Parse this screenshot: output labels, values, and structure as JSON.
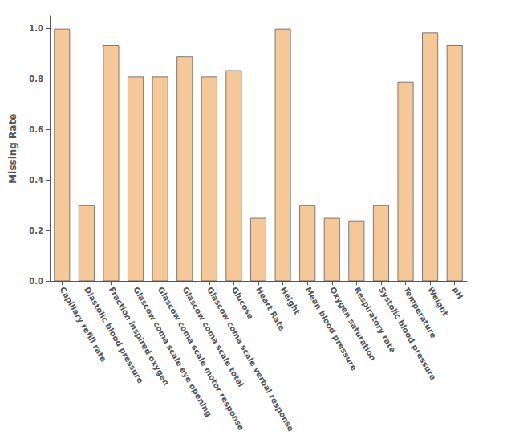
{
  "chart_data": {
    "type": "bar",
    "ylabel": "Missing Rate",
    "categories": [
      "Capillary refill rate",
      "Diastolic blood pressure",
      "Fraction inspired oxygen",
      "Glascow coma scale eye opening",
      "Glascow coma scale motor response",
      "Glascow coma scale total",
      "Glascow coma scale verbal response",
      "Glucose",
      "Heart Rate",
      "Height",
      "Mean blood pressure",
      "Oxygen saturation",
      "Respiratory rate",
      "Systolic blood pressure",
      "Temperature",
      "Weight",
      "pH"
    ],
    "values": [
      1.0,
      0.3,
      0.935,
      0.81,
      0.81,
      0.89,
      0.81,
      0.835,
      0.25,
      1.0,
      0.3,
      0.25,
      0.24,
      0.3,
      0.79,
      0.985,
      0.935
    ],
    "color": "#f5c899",
    "ylim": [
      0.0,
      1.05
    ],
    "yticks": [
      {
        "value": 0.0,
        "label": "0.0"
      },
      0.2,
      0.4,
      0.6,
      0.8,
      {
        "value": 1.0,
        "label": "1.0"
      }
    ],
    "grid": false
  }
}
